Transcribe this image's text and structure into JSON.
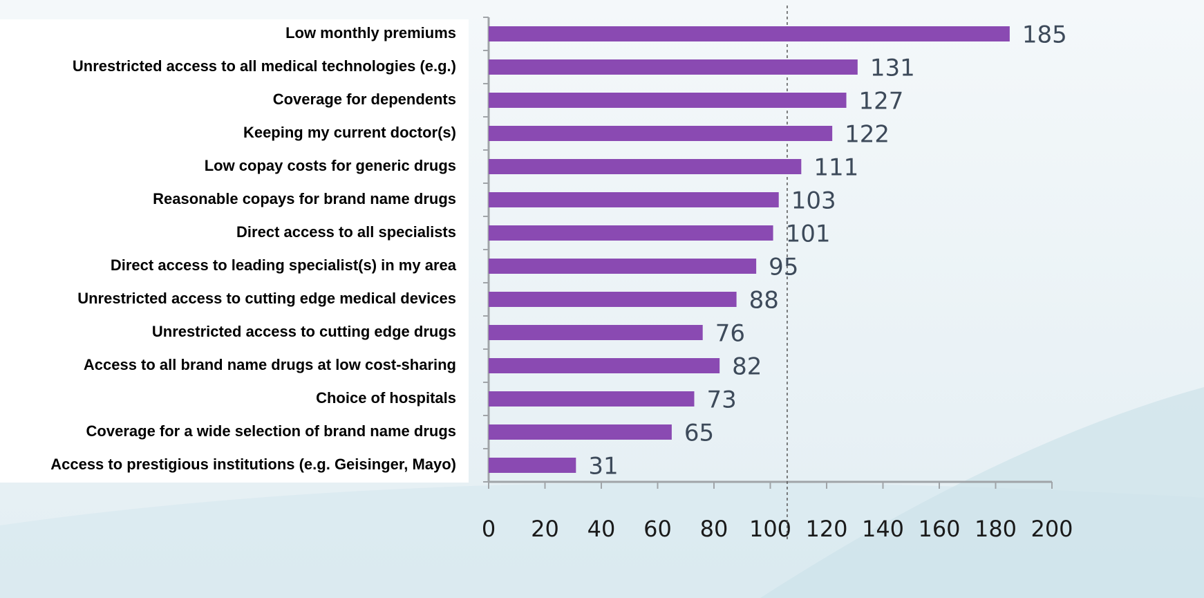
{
  "chart_data": {
    "type": "bar",
    "orientation": "horizontal",
    "categories": [
      "Low monthly premiums",
      "Unrestricted access to all medical technologies (e.g.)",
      "Coverage for dependents",
      "Keeping my current doctor(s)",
      "Low copay costs for generic drugs",
      "Reasonable copays for brand name drugs",
      "Direct access to all specialists",
      "Direct access to leading specialist(s) in my area",
      "Unrestricted access to cutting edge medical devices",
      "Unrestricted access to cutting edge drugs",
      "Access to all brand name drugs at low cost-sharing",
      "Choice of hospitals",
      "Coverage for a wide selection of brand name drugs",
      "Access to prestigious institutions (e.g. Geisinger, Mayo)"
    ],
    "values": [
      185,
      131,
      127,
      122,
      111,
      103,
      101,
      95,
      88,
      76,
      82,
      73,
      65,
      31
    ],
    "color": "#8a4ab2",
    "xlim": [
      0,
      200
    ],
    "xticks": [
      0,
      20,
      40,
      60,
      80,
      100,
      120,
      140,
      160,
      180,
      200
    ],
    "reference_line": 106,
    "grid": false
  }
}
